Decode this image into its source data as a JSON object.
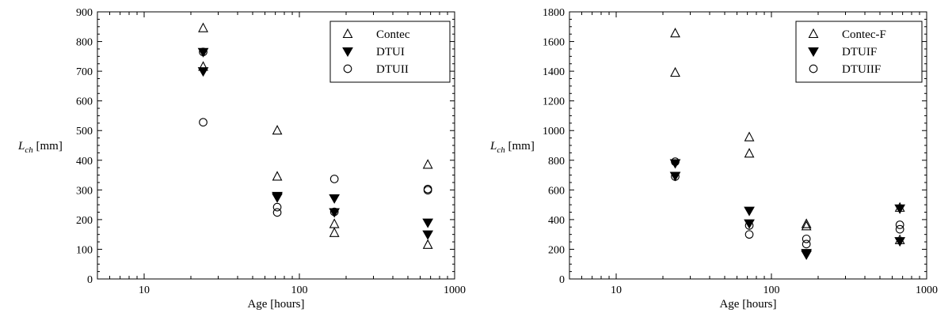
{
  "chart_data": [
    {
      "type": "scatter",
      "title": "",
      "xlabel": "Age [hours]",
      "ylabel_main": "L",
      "ylabel_sub": "ch",
      "ylabel_unit": " [mm]",
      "xscale": "log",
      "xlim": [
        5,
        1000
      ],
      "ylim": [
        0,
        900
      ],
      "x_ticks": [
        10,
        100,
        1000
      ],
      "y_ticks": [
        0,
        100,
        200,
        300,
        400,
        500,
        600,
        700,
        800,
        900
      ],
      "grid": false,
      "legend_position": "top-right",
      "series": [
        {
          "name": "Contec",
          "marker": "triangle-up-open",
          "points": [
            {
              "x": 24,
              "y": 845
            },
            {
              "x": 24,
              "y": 715
            },
            {
              "x": 72,
              "y": 500
            },
            {
              "x": 72,
              "y": 345
            },
            {
              "x": 168,
              "y": 185
            },
            {
              "x": 168,
              "y": 155
            },
            {
              "x": 672,
              "y": 385
            },
            {
              "x": 672,
              "y": 115
            }
          ]
        },
        {
          "name": "DTUI",
          "marker": "triangle-down-filled",
          "points": [
            {
              "x": 24,
              "y": 765
            },
            {
              "x": 24,
              "y": 700
            },
            {
              "x": 72,
              "y": 280
            },
            {
              "x": 72,
              "y": 275
            },
            {
              "x": 168,
              "y": 272
            },
            {
              "x": 168,
              "y": 225
            },
            {
              "x": 672,
              "y": 190
            },
            {
              "x": 672,
              "y": 150
            }
          ]
        },
        {
          "name": "DTUII",
          "marker": "circle-open",
          "points": [
            {
              "x": 24,
              "y": 765
            },
            {
              "x": 24,
              "y": 528
            },
            {
              "x": 72,
              "y": 242
            },
            {
              "x": 72,
              "y": 224
            },
            {
              "x": 168,
              "y": 337
            },
            {
              "x": 168,
              "y": 226
            },
            {
              "x": 672,
              "y": 303
            },
            {
              "x": 672,
              "y": 299
            }
          ]
        }
      ]
    },
    {
      "type": "scatter",
      "title": "",
      "xlabel": "Age [hours]",
      "ylabel_main": "L",
      "ylabel_sub": "ch",
      "ylabel_unit": " [mm]",
      "xscale": "log",
      "xlim": [
        5,
        1000
      ],
      "ylim": [
        0,
        1800
      ],
      "x_ticks": [
        10,
        100,
        1000
      ],
      "y_ticks": [
        0,
        200,
        400,
        600,
        800,
        1000,
        1200,
        1400,
        1600,
        1800
      ],
      "grid": false,
      "legend_position": "top-right",
      "series": [
        {
          "name": "Contec-F",
          "marker": "triangle-up-open",
          "points": [
            {
              "x": 24,
              "y": 1655
            },
            {
              "x": 24,
              "y": 1390
            },
            {
              "x": 72,
              "y": 955
            },
            {
              "x": 72,
              "y": 845
            },
            {
              "x": 168,
              "y": 370
            },
            {
              "x": 168,
              "y": 355
            },
            {
              "x": 672,
              "y": 480
            },
            {
              "x": 672,
              "y": 262
            }
          ]
        },
        {
          "name": "DTUIF",
          "marker": "triangle-down-filled",
          "points": [
            {
              "x": 24,
              "y": 780
            },
            {
              "x": 24,
              "y": 695
            },
            {
              "x": 72,
              "y": 460
            },
            {
              "x": 72,
              "y": 375
            },
            {
              "x": 168,
              "y": 175
            },
            {
              "x": 168,
              "y": 165
            },
            {
              "x": 672,
              "y": 475
            },
            {
              "x": 672,
              "y": 255
            }
          ]
        },
        {
          "name": "DTUIIF",
          "marker": "circle-open",
          "points": [
            {
              "x": 24,
              "y": 790
            },
            {
              "x": 24,
              "y": 690
            },
            {
              "x": 72,
              "y": 360
            },
            {
              "x": 72,
              "y": 300
            },
            {
              "x": 168,
              "y": 270
            },
            {
              "x": 168,
              "y": 235
            },
            {
              "x": 672,
              "y": 365
            },
            {
              "x": 672,
              "y": 335
            }
          ]
        }
      ]
    }
  ]
}
